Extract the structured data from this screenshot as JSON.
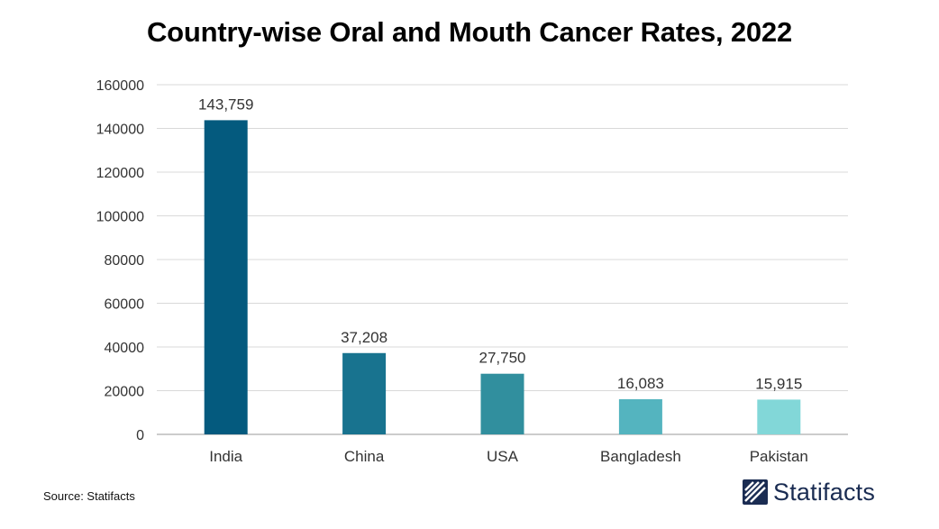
{
  "chart_data": {
    "type": "bar",
    "title": "Country-wise Oral and Mouth Cancer Rates, 2022",
    "categories": [
      "India",
      "China",
      "USA",
      "Bangladesh",
      "Pakistan"
    ],
    "values": [
      143759,
      37208,
      27750,
      16083,
      15915
    ],
    "value_labels": [
      "143,759",
      "37,208",
      "27,750",
      "16,083",
      "15,915"
    ],
    "bar_colors": [
      "#045a7e",
      "#18738f",
      "#318f9e",
      "#54b4bf",
      "#82d7d8"
    ],
    "ylim": [
      0,
      160000
    ],
    "yticks": [
      0,
      20000,
      40000,
      60000,
      80000,
      100000,
      120000,
      140000,
      160000
    ],
    "ytick_labels": [
      "0",
      "20000",
      "40000",
      "60000",
      "80000",
      "100000",
      "120000",
      "140000",
      "160000"
    ],
    "xlabel": "",
    "ylabel": "",
    "grid": true
  },
  "footer": {
    "source": "Source: Statifacts",
    "brand": "Statifacts",
    "brand_color": "#1a2c52"
  }
}
